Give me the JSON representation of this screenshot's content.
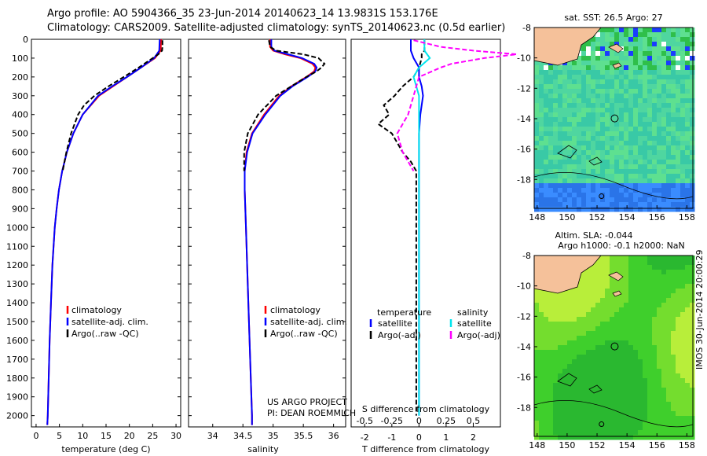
{
  "header": {
    "title_line1": "Argo profile: AO 5904366_35 23-Jun-2014 20140623_14 13.9831S 153.176E",
    "title_line2": "Climatology: CARS2009. Satellite-adjusted climatology: synTS_20140623.nc (0.5d earlier)"
  },
  "colors": {
    "climatology": "#ff0000",
    "satellite": "#0000ff",
    "argo": "#000000",
    "sat_salinity": "#00e5ee",
    "argo_salinity": "#ff00ff"
  },
  "chart_data": [
    {
      "id": "temperature",
      "type": "line",
      "xlabel": "temperature (deg C)",
      "ylabel": "",
      "xlim": [
        -1,
        31
      ],
      "ylim": [
        2060,
        0
      ],
      "xticks": [
        0,
        5,
        10,
        15,
        20,
        25,
        30
      ],
      "yticks": [
        0,
        100,
        200,
        300,
        400,
        500,
        600,
        700,
        800,
        900,
        1000,
        1100,
        1200,
        1300,
        1400,
        1500,
        1600,
        1700,
        1800,
        1900,
        2000
      ],
      "legend": [
        "climatology",
        "satellite-adj. clim.",
        "Argo(..raw -QC)"
      ],
      "series": [
        {
          "name": "climatology",
          "depth": [
            0,
            60,
            100,
            150,
            200,
            250,
            300,
            400,
            500,
            600,
            700,
            800,
            900,
            1000,
            1200,
            1400,
            1600,
            1800,
            2000,
            2050
          ],
          "values": [
            26.8,
            26.7,
            25.5,
            22.5,
            19.5,
            16.5,
            13.5,
            10,
            8,
            6.6,
            5.6,
            4.9,
            4.4,
            4,
            3.5,
            3.2,
            2.9,
            2.7,
            2.5,
            2.4
          ]
        },
        {
          "name": "satellite",
          "depth": [
            0,
            60,
            100,
            150,
            200,
            250,
            300,
            400,
            500,
            600,
            700,
            800,
            900,
            1000,
            1200,
            1400,
            1600,
            1800,
            2000,
            2050
          ],
          "values": [
            26.5,
            26.4,
            25.3,
            22.5,
            19.5,
            16.3,
            13.3,
            10,
            8,
            6.6,
            5.6,
            4.9,
            4.4,
            4,
            3.5,
            3.2,
            2.9,
            2.7,
            2.5,
            2.4
          ]
        },
        {
          "name": "argo",
          "depth": [
            5,
            40,
            60,
            80,
            100,
            150,
            200,
            250,
            300,
            350,
            400,
            500,
            600,
            700
          ],
          "values": [
            27.1,
            27.1,
            27.0,
            26.2,
            25.0,
            22.0,
            18.8,
            15.5,
            12.5,
            10.3,
            9.0,
            7.5,
            6.5,
            5.7
          ]
        }
      ]
    },
    {
      "id": "salinity",
      "type": "line",
      "xlabel": "salinity",
      "ylabel": "",
      "xlim": [
        33.6,
        36.2
      ],
      "ylim": [
        2060,
        0
      ],
      "xticks": [
        34,
        34.5,
        35,
        35.5,
        36
      ],
      "legend": [
        "climatology",
        "satellite-adj. clim.",
        "Argo(..raw -QC)"
      ],
      "series": [
        {
          "name": "climatology",
          "depth": [
            0,
            40,
            60,
            80,
            100,
            130,
            150,
            170,
            200,
            250,
            300,
            400,
            500,
            600,
            700,
            800,
            1000,
            1200,
            1500,
            2000,
            2050
          ],
          "values": [
            34.95,
            34.95,
            35.0,
            35.2,
            35.45,
            35.65,
            35.7,
            35.68,
            35.55,
            35.3,
            35.1,
            34.85,
            34.65,
            34.56,
            34.53,
            34.53,
            34.55,
            34.57,
            34.6,
            34.65,
            34.65
          ]
        },
        {
          "name": "satellite",
          "depth": [
            0,
            40,
            60,
            80,
            100,
            130,
            150,
            170,
            200,
            250,
            300,
            400,
            500,
            600,
            700,
            800,
            1000,
            1200,
            1500,
            2000,
            2050
          ],
          "values": [
            34.97,
            34.97,
            35.02,
            35.25,
            35.48,
            35.68,
            35.72,
            35.7,
            35.57,
            35.32,
            35.12,
            34.87,
            34.66,
            34.57,
            34.53,
            34.53,
            34.55,
            34.57,
            34.6,
            34.65,
            34.65
          ]
        },
        {
          "name": "argo",
          "depth": [
            5,
            40,
            60,
            80,
            100,
            130,
            150,
            170,
            200,
            250,
            300,
            400,
            500,
            600,
            700
          ],
          "values": [
            34.93,
            34.95,
            35.05,
            35.5,
            35.75,
            35.85,
            35.8,
            35.72,
            35.55,
            35.3,
            35.05,
            34.75,
            34.58,
            34.52,
            34.52
          ]
        }
      ],
      "annotation": [
        "US ARGO PROJECT",
        "PI: DEAN ROEMMICH"
      ]
    },
    {
      "id": "difference",
      "type": "line",
      "xlabel": "T difference from climatology",
      "xlabel_top": "S difference from climatology",
      "xlim": [
        -2.5,
        3
      ],
      "ylim": [
        2060,
        0
      ],
      "xticks": [
        -2,
        -1,
        0,
        1,
        2
      ],
      "s_ticks": [
        "-0.5",
        "-0.25",
        "0",
        "0.25",
        "0.5"
      ],
      "legend_headers": [
        "temperature",
        "salinity"
      ],
      "legend": [
        "satellite",
        "Argo(-adj)",
        "satellite",
        "Argo(-adj)"
      ],
      "series": [
        {
          "name": "temperature satellite",
          "depth": [
            0,
            60,
            100,
            150,
            200,
            250,
            300,
            400,
            500,
            600,
            700,
            800,
            1000,
            1500,
            2000
          ],
          "values": [
            -0.3,
            -0.3,
            -0.2,
            0,
            0,
            0.1,
            0.15,
            0.05,
            0,
            0,
            0,
            0,
            0,
            0,
            0
          ]
        },
        {
          "name": "temperature Argo(-adj)",
          "depth": [
            5,
            60,
            80,
            100,
            150,
            200,
            250,
            300,
            350,
            400,
            450,
            500,
            550,
            600,
            650,
            700,
            800,
            1000,
            1500,
            2000
          ],
          "values": [
            0.2,
            0.2,
            0.1,
            0.1,
            0,
            -0.2,
            -0.6,
            -0.9,
            -1.3,
            -1.1,
            -1.5,
            -1.0,
            -0.8,
            -0.6,
            -0.3,
            -0.1,
            -0.1,
            -0.1,
            -0.1,
            -0.1
          ]
        },
        {
          "name": "salinity satellite",
          "depth": [
            0,
            60,
            100,
            150,
            200,
            300,
            400,
            600,
            800,
            1000,
            1500,
            2000
          ],
          "values": [
            0.05,
            0.05,
            0.1,
            0,
            -0.05,
            0,
            0,
            0,
            0,
            0,
            0,
            0
          ]
        },
        {
          "name": "salinity Argo(-adj)",
          "depth": [
            5,
            40,
            60,
            80,
            100,
            130,
            150,
            200,
            300,
            400,
            500,
            600,
            700
          ],
          "values": [
            -0.05,
            0.2,
            0.5,
            0.9,
            0.6,
            0.3,
            0.2,
            0,
            -0.05,
            -0.1,
            -0.2,
            -0.15,
            -0.05
          ]
        }
      ]
    },
    {
      "id": "sst_map",
      "type": "heatmap",
      "title": "sat. SST: 26.5 Argo: 27",
      "xlim": [
        147.8,
        158.4
      ],
      "ylim": [
        -19.9,
        -8
      ],
      "xticks": [
        148,
        150,
        152,
        154,
        156,
        158
      ],
      "yticks": [
        -8,
        -10,
        -12,
        -14,
        -16,
        -18
      ],
      "argo_position": {
        "lon": 153.176,
        "lat": -13.9831
      }
    },
    {
      "id": "sla_map",
      "type": "heatmap",
      "title_line1": "Altim. SLA: -0.044",
      "title_line2": "Argo h1000: -0.1 h2000: NaN",
      "xlim": [
        147.8,
        158.4
      ],
      "ylim": [
        -19.9,
        -8
      ],
      "xticks": [
        148,
        150,
        152,
        154,
        156,
        158
      ],
      "yticks": [
        -8,
        -10,
        -12,
        -14,
        -16,
        -18
      ],
      "argo_position": {
        "lon": 153.176,
        "lat": -13.9831
      }
    }
  ],
  "footer": {
    "stamp": "IMOS 30-Jun-2014 20:00:29"
  }
}
